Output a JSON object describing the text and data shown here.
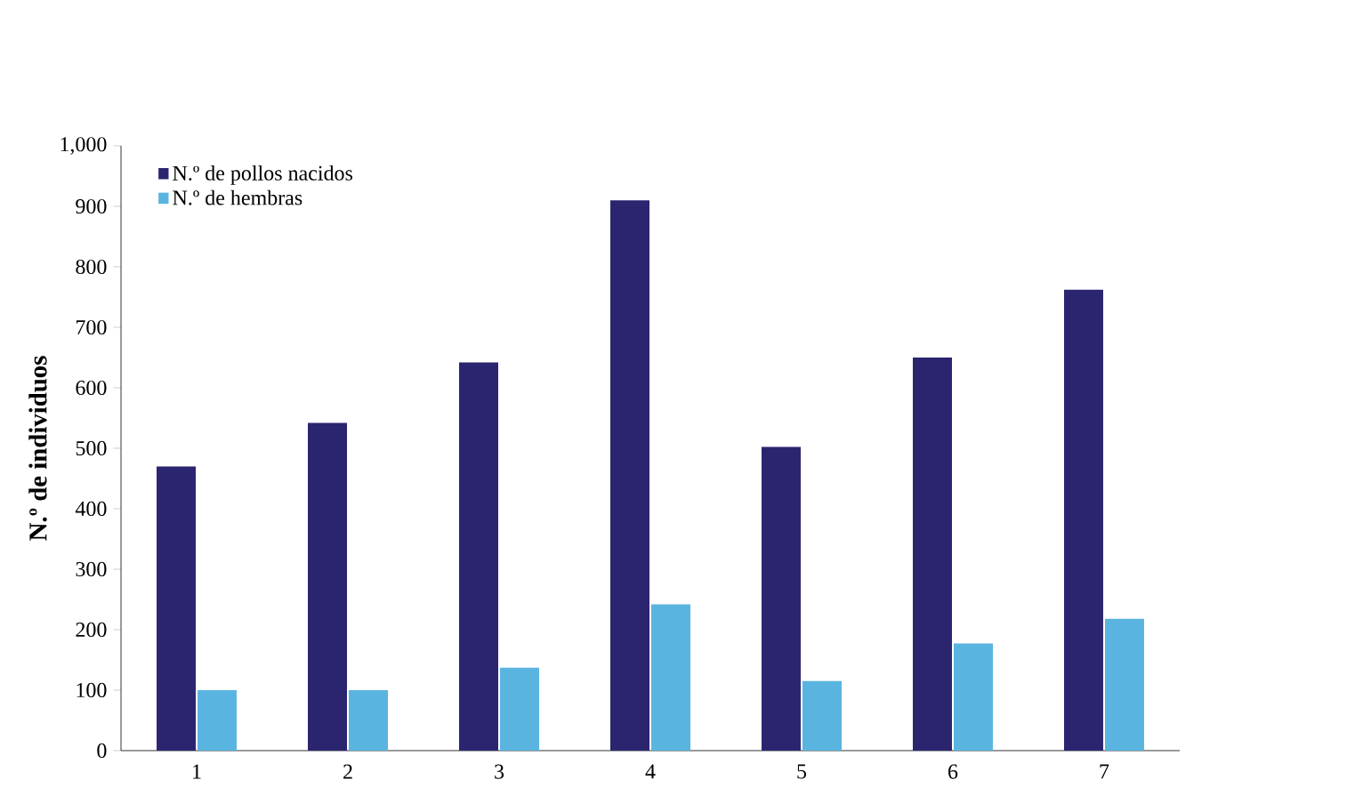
{
  "chart_data": {
    "type": "bar",
    "ylabel": "N.º de individuos",
    "categories": [
      "1",
      "2",
      "3",
      "4",
      "5",
      "6",
      "7"
    ],
    "series": [
      {
        "name": "N.º de pollos nacidos",
        "color": "#2b2570",
        "values": [
          470,
          542,
          642,
          910,
          502,
          650,
          762
        ]
      },
      {
        "name": "N.º de hembras",
        "color": "#5ab4e0",
        "values": [
          100,
          100,
          137,
          242,
          115,
          177,
          218
        ]
      }
    ],
    "ylim": [
      0,
      1000
    ],
    "yticks": [
      0,
      100,
      200,
      300,
      400,
      500,
      600,
      700,
      800,
      900,
      {
        "value": 1000,
        "label": "1,000"
      }
    ],
    "legend": "top left",
    "grid": false
  }
}
